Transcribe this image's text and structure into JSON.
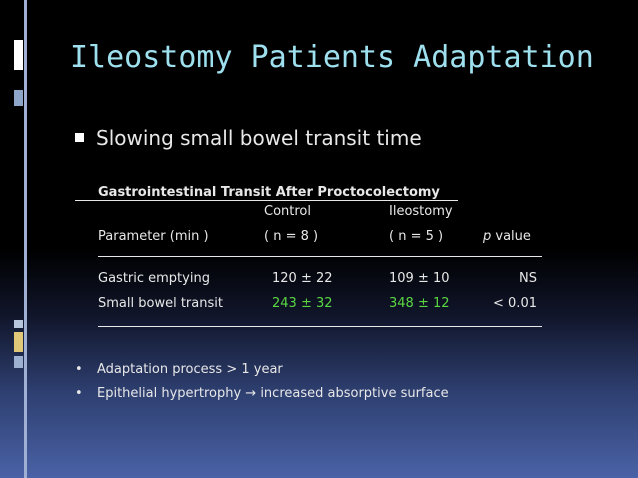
{
  "title": "Ileostomy Patients Adaptation",
  "bullet_main": "Slowing small bowel transit time",
  "table": {
    "caption": "Gastrointestinal Transit After Proctocolectomy",
    "col_control": "Control",
    "col_ileostomy": "Ileostomy",
    "param_label": "Parameter (min )",
    "control_n": "( n = 8  )",
    "ileostomy_n": "( n = 5 )",
    "p_italic": "p",
    "p_label": " value",
    "rows": [
      {
        "parameter": "Gastric emptying",
        "control": "120 ± 22",
        "ileostomy": "109 ± 10",
        "p": "NS"
      },
      {
        "parameter": "Small bowel transit",
        "control": "243 ± 32",
        "ileostomy": "348 ± 12",
        "p": "< 0.01"
      }
    ]
  },
  "notes": [
    "Adaptation process > 1 year",
    "Epithelial hypertrophy → increased absorptive surface"
  ],
  "colors": {
    "title": "#9ee0ee",
    "highlight": "#5ad842",
    "text": "#e8e8e8"
  }
}
